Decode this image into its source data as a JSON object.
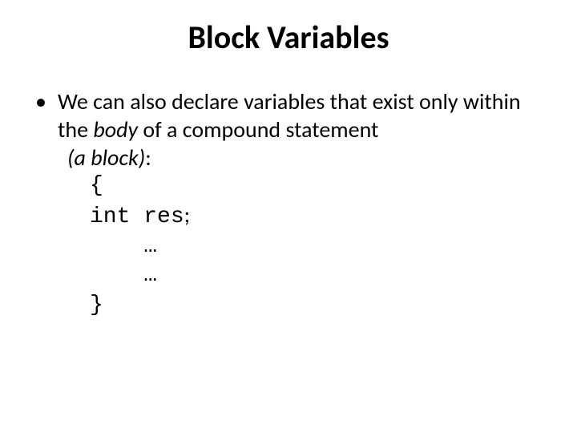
{
  "title": "Block Variables",
  "bullet": {
    "dot": "•",
    "part1": "We can also declare variables that exist only within the ",
    "italic1": "body",
    "part2": " of a compound statement",
    "line2_italic": "(a block)",
    "line2_colon": ":"
  },
  "code": {
    "l1": "{",
    "l2a": "int res",
    "l2b": ";",
    "l3": "    …",
    "l4": "    …",
    "l5": "}"
  },
  "style": {
    "title_fontsize": 40,
    "body_fontsize": 28,
    "code_fontsize": 28,
    "text_color": "#000000",
    "background_color": "#ffffff",
    "title_weight": 700
  }
}
